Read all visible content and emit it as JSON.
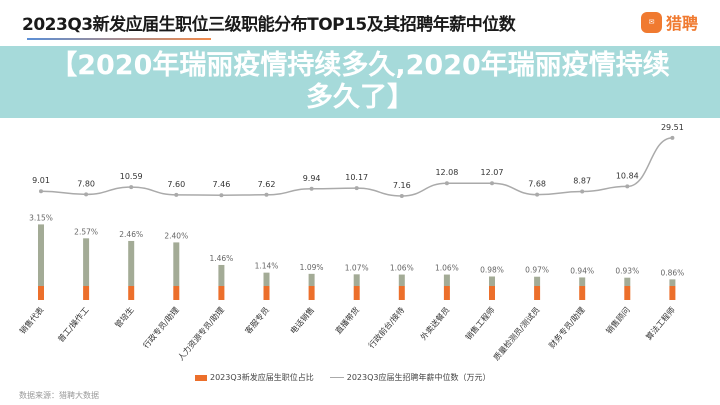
{
  "header": {
    "title": "2023Q3新发应届生职位三级职能分布TOP15及其招聘年薪中位数",
    "logo_text": "猎聘",
    "logo_badge": "猎聘"
  },
  "banner": {
    "text": "【2020年瑞丽疫情持续多久,2020年瑞丽疫情持续多久了】"
  },
  "source": "数据来源：猎聘大数据",
  "chart_data": {
    "type": "bar+line",
    "title": "2023Q3新发应届生职位三级职能分布TOP15及其招聘年薪中位数",
    "categories": [
      "销售代表",
      "普工/操作工",
      "管培生",
      "行政专员/助理",
      "人力资源专员/助理",
      "客服专员",
      "电话销售",
      "直播带货",
      "行政前台/接待",
      "外卖送餐员",
      "销售工程师",
      "质量检测员/测试员",
      "财务专员/助理",
      "销售顾问",
      "算法工程师"
    ],
    "series": [
      {
        "name": "2023Q3新发应届生职位占比",
        "type": "bar",
        "unit": "%",
        "color": "#ec6f2b",
        "values": [
          3.15,
          2.57,
          2.46,
          2.4,
          1.46,
          1.14,
          1.09,
          1.07,
          1.06,
          1.06,
          0.98,
          0.97,
          0.94,
          0.93,
          0.86
        ],
        "labels": [
          "3.15%",
          "2.57%",
          "2.46%",
          "2.40%",
          "1.46%",
          "1.14%",
          "1.09%",
          "1.07%",
          "1.06%",
          "1.06%",
          "0.98%",
          "0.97%",
          "0.94%",
          "0.93%",
          "0.86%"
        ]
      },
      {
        "name": "2023Q3应届生招聘年薪中位数（万元）",
        "type": "line",
        "color": "#aaaaaa",
        "values": [
          9.01,
          7.8,
          10.59,
          7.6,
          7.46,
          7.62,
          9.94,
          10.17,
          7.16,
          12.08,
          12.07,
          7.68,
          8.87,
          10.84,
          29.51
        ],
        "labels": [
          "9.01",
          "7.80",
          "10.59",
          "7.60",
          "7.46",
          "7.62",
          "9.94",
          "10.17",
          "7.16",
          "12.08",
          "12.07",
          "7.68",
          "8.87",
          "10.84",
          "29.51"
        ]
      }
    ],
    "legend": "bottom",
    "grid": false
  }
}
